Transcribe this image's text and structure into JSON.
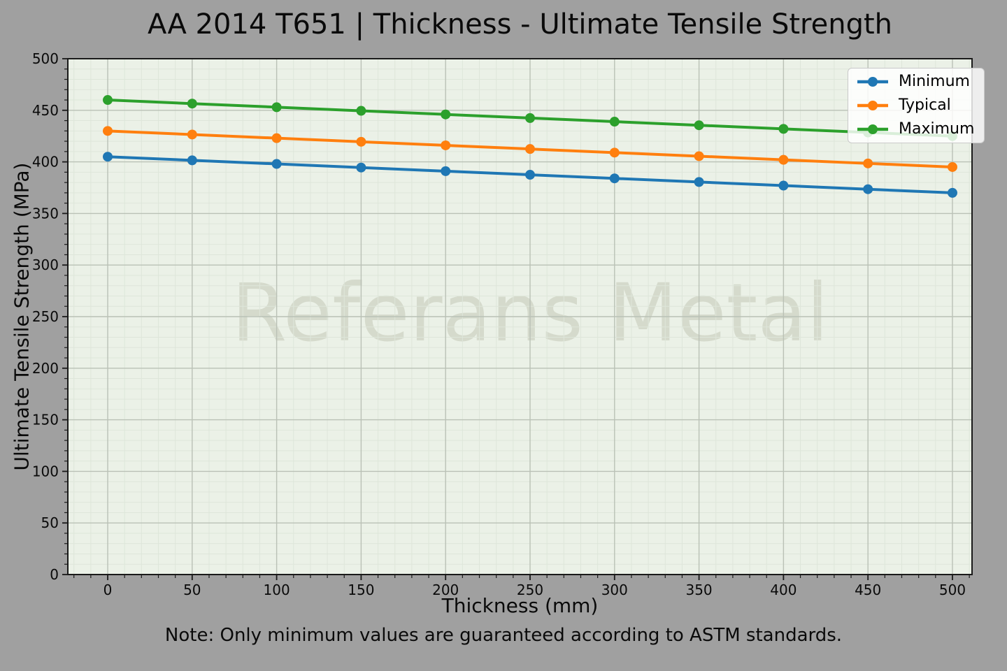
{
  "chart_data": {
    "type": "line",
    "title": "AA 2014 T651 | Thickness - Ultimate Tensile Strength",
    "xlabel": "Thickness (mm)",
    "ylabel": "Ultimate Tensile Strength (MPa)",
    "note": "Note: Only minimum values are guaranteed according to ASTM standards.",
    "watermark": "Referans Metal",
    "x": [
      0,
      50,
      100,
      150,
      200,
      250,
      300,
      350,
      400,
      450,
      500
    ],
    "series": [
      {
        "name": "Minimum",
        "color": "#1f77b4",
        "values": [
          405,
          401.5,
          398,
          394.5,
          391,
          387.5,
          384,
          380.5,
          377,
          373.5,
          370
        ]
      },
      {
        "name": "Typical",
        "color": "#ff7f0e",
        "values": [
          430,
          426.5,
          423,
          419.5,
          416,
          412.5,
          409,
          405.5,
          402,
          398.5,
          395
        ]
      },
      {
        "name": "Maximum",
        "color": "#2ca02c",
        "values": [
          460,
          456.5,
          453,
          449.5,
          446,
          442.5,
          439,
          435.5,
          432,
          428.5,
          425
        ]
      }
    ],
    "xticks": [
      0,
      50,
      100,
      150,
      200,
      250,
      300,
      350,
      400,
      450,
      500
    ],
    "yticks": [
      0,
      50,
      100,
      150,
      200,
      250,
      300,
      350,
      400,
      450,
      500
    ],
    "xlim": [
      -23.6,
      511.6
    ],
    "ylim": [
      0,
      500
    ],
    "minor_step_x": 10,
    "minor_step_y": 10,
    "grid": true,
    "legend_position": "upper right",
    "plot_background": "#ebf1e7",
    "grid_major_color": "#bac1b6",
    "grid_minor_color": "#dee6da",
    "watermark_color": "#d5dacc",
    "figure_background": "#a0a0a0"
  }
}
